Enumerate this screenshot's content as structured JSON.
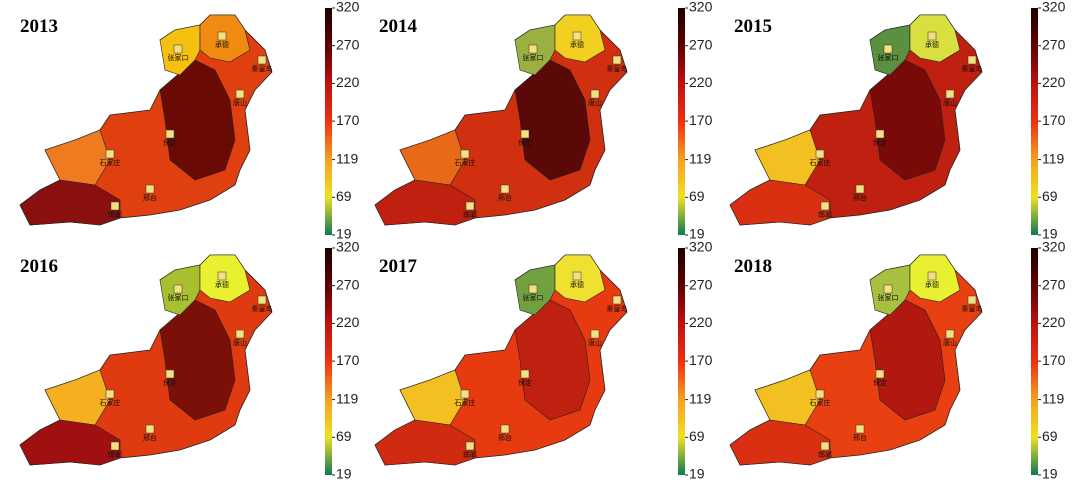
{
  "panels": [
    {
      "year": "2013"
    },
    {
      "year": "2014"
    },
    {
      "year": "2015"
    },
    {
      "year": "2016"
    },
    {
      "year": "2017"
    },
    {
      "year": "2018"
    }
  ],
  "colorbar": {
    "lim": [
      19,
      320
    ],
    "ticks": [
      19,
      69,
      119,
      170,
      220,
      270,
      320
    ],
    "colors": [
      "#0b7a5a",
      "#f0e020",
      "#f5a020",
      "#f03010",
      "#c01010",
      "#600000",
      "#1a0000"
    ]
  },
  "cities": [
    "张家口",
    "承德",
    "秦皇岛",
    "唐山",
    "保定",
    "石家庄",
    "邢台",
    "邯郸"
  ]
}
